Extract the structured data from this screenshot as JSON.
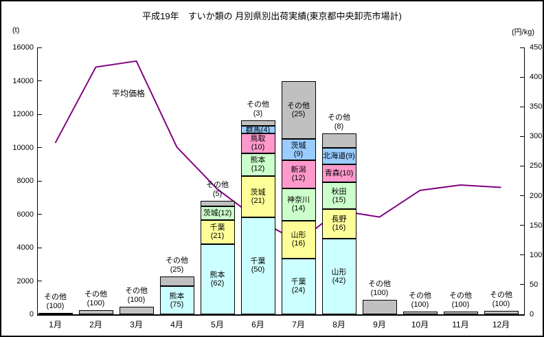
{
  "title": "平成19年　すいか類の 月別県別出荷実績(東京都中央卸売市場計)",
  "left_axis_unit": "(t)",
  "right_axis_unit": "(円/kg)",
  "chart_data": {
    "type": "bar",
    "subtype": "stacked-bar-with-line",
    "title": "平成19年　すいか類の 月別県別出荷実績(東京都中央卸売市場計)",
    "categories": [
      "1月",
      "2月",
      "3月",
      "4月",
      "5月",
      "6月",
      "7月",
      "8月",
      "9月",
      "10月",
      "11月",
      "12月"
    ],
    "left_axis": {
      "unit": "t",
      "min": 0,
      "max": 16000,
      "step": 2000,
      "ticks": [
        "0",
        "2000",
        "4000",
        "6000",
        "8000",
        "10000",
        "12000",
        "14000",
        "16000"
      ]
    },
    "right_axis": {
      "unit": "円/kg",
      "min": 0,
      "max": 450,
      "step": 50,
      "ticks": [
        "0",
        "50",
        "100",
        "150",
        "200",
        "250",
        "300",
        "350",
        "400",
        "450"
      ]
    },
    "grid": "off",
    "bars": [
      {
        "month": "1月",
        "total_t": 100,
        "segments": [
          {
            "name": "その他",
            "pct": 100,
            "color": "gray",
            "label": "above"
          }
        ]
      },
      {
        "month": "2月",
        "total_t": 230,
        "segments": [
          {
            "name": "その他",
            "pct": 100,
            "color": "gray",
            "label": "above"
          }
        ]
      },
      {
        "month": "3月",
        "total_t": 450,
        "segments": [
          {
            "name": "その他",
            "pct": 100,
            "color": "gray",
            "label": "above"
          }
        ]
      },
      {
        "month": "4月",
        "total_t": 2250,
        "segments": [
          {
            "name": "熊本",
            "pct": 75,
            "color": "lightblue",
            "label": "inside"
          },
          {
            "name": "その他",
            "pct": 25,
            "color": "gray",
            "label": "above"
          }
        ]
      },
      {
        "month": "5月",
        "total_t": 6800,
        "segments": [
          {
            "name": "熊本",
            "pct": 62,
            "color": "lightblue",
            "label": "inside"
          },
          {
            "name": "千葉",
            "pct": 21,
            "color": "yellow",
            "label": "inside"
          },
          {
            "name": "茨城",
            "pct": 12,
            "color": "green",
            "label": "inside",
            "compact": true
          },
          {
            "name": "その他",
            "pct": 5,
            "color": "gray",
            "label": "above"
          }
        ]
      },
      {
        "month": "6月",
        "total_t": 11650,
        "segments": [
          {
            "name": "千葉",
            "pct": 50,
            "color": "lightblue",
            "label": "inside"
          },
          {
            "name": "茨城",
            "pct": 21,
            "color": "yellow",
            "label": "inside"
          },
          {
            "name": "熊本",
            "pct": 12,
            "color": "green",
            "label": "inside"
          },
          {
            "name": "鳥取",
            "pct": 10,
            "color": "pink",
            "label": "inside"
          },
          {
            "name": "群馬",
            "pct": 4,
            "color": "blue",
            "label": "inside",
            "compact": true
          },
          {
            "name": "その他",
            "pct": 3,
            "color": "gray",
            "label": "above"
          }
        ]
      },
      {
        "month": "7月",
        "total_t": 14000,
        "segments": [
          {
            "name": "千葉",
            "pct": 24,
            "color": "lightblue",
            "label": "inside"
          },
          {
            "name": "山形",
            "pct": 16,
            "color": "yellow",
            "label": "inside"
          },
          {
            "name": "神奈川",
            "pct": 14,
            "color": "green",
            "label": "inside"
          },
          {
            "name": "新潟",
            "pct": 12,
            "color": "pink",
            "label": "inside"
          },
          {
            "name": "茨城",
            "pct": 9,
            "color": "blue",
            "label": "inside"
          },
          {
            "name": "その他",
            "pct": 25,
            "color": "gray",
            "label": "inside"
          }
        ]
      },
      {
        "month": "8月",
        "total_t": 10850,
        "segments": [
          {
            "name": "山形",
            "pct": 42,
            "color": "lightblue",
            "label": "inside"
          },
          {
            "name": "長野",
            "pct": 16,
            "color": "yellow",
            "label": "inside"
          },
          {
            "name": "秋田",
            "pct": 15,
            "color": "green",
            "label": "inside"
          },
          {
            "name": "青森",
            "pct": 10,
            "color": "pink",
            "label": "inside",
            "compact": true
          },
          {
            "name": "北海道",
            "pct": 9,
            "color": "blue",
            "label": "inside",
            "compact": true
          },
          {
            "name": "その他",
            "pct": 8,
            "color": "gray",
            "label": "above"
          }
        ]
      },
      {
        "month": "9月",
        "total_t": 850,
        "segments": [
          {
            "name": "その他",
            "pct": 100,
            "color": "gray",
            "label": "above"
          }
        ]
      },
      {
        "month": "10月",
        "total_t": 150,
        "segments": [
          {
            "name": "その他",
            "pct": 100,
            "color": "gray",
            "label": "above"
          }
        ]
      },
      {
        "month": "11月",
        "total_t": 150,
        "segments": [
          {
            "name": "その他",
            "pct": 100,
            "color": "gray",
            "label": "above"
          }
        ]
      },
      {
        "month": "12月",
        "total_t": 200,
        "segments": [
          {
            "name": "その他",
            "pct": 100,
            "color": "gray",
            "label": "above"
          }
        ]
      }
    ],
    "line_series": {
      "name": "平均価格",
      "axis": "right",
      "unit": "円/kg",
      "values": [
        289,
        417,
        427,
        282,
        211,
        160,
        122,
        175,
        164,
        209,
        218,
        214
      ]
    },
    "colors": {
      "lightblue": "#CCFFFF",
      "yellow": "#FFFF99",
      "green": "#CCFFCC",
      "pink": "#FF99CC",
      "blue": "#99CCFF",
      "gray": "#C0C0C0",
      "line": "#800080"
    }
  }
}
